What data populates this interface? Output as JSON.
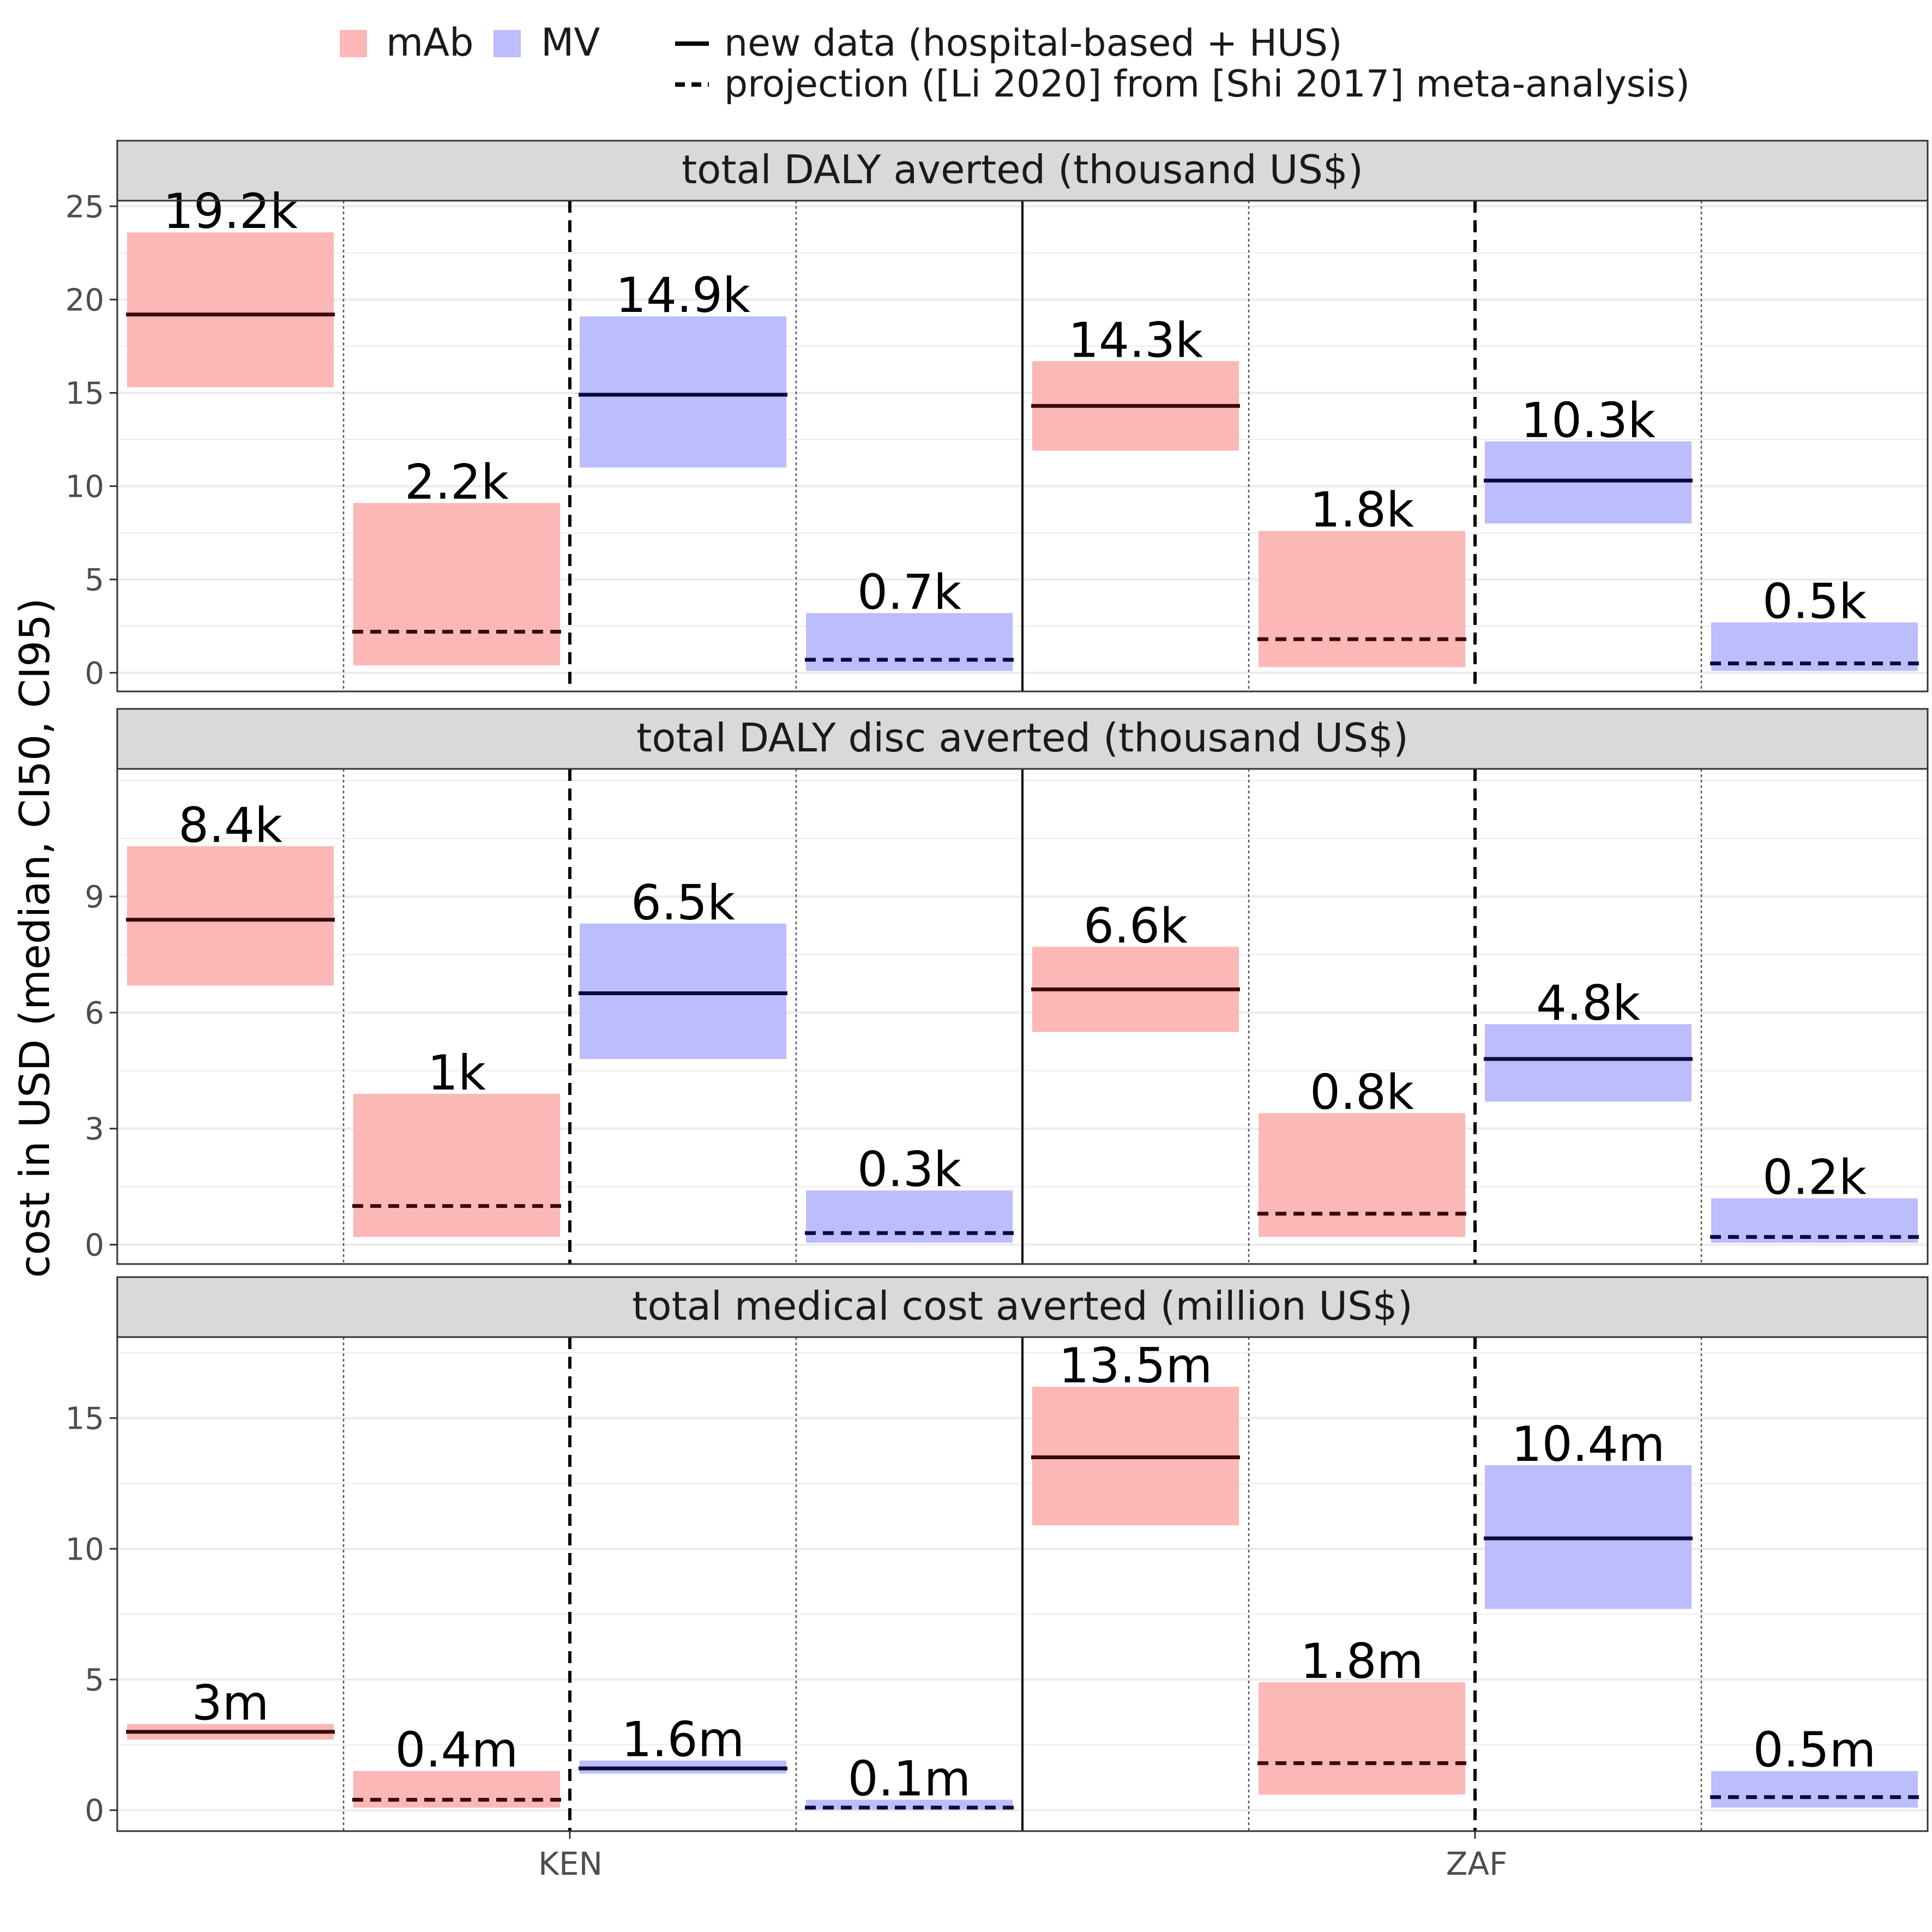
{
  "chart_data": {
    "type": "bar",
    "ylabel": "cost in USD (median, CI50, CI95)",
    "legend": {
      "placement": "top",
      "fill_items": [
        {
          "label": "mAb",
          "color": "#fcb7b7"
        },
        {
          "label": "MV",
          "color": "#bbbdfc"
        }
      ],
      "line_items": [
        {
          "label": "new data (hospital-based + HUS)",
          "style": "solid"
        },
        {
          "label": "projection ([Li 2020] from [Shi 2017] meta-analysis)",
          "style": "dashed"
        }
      ]
    },
    "groups": [
      "KEN",
      "ZAF"
    ],
    "colors": {
      "mAb": "#fcb7b7",
      "MV": "#bbbdfc",
      "mAb_line": "#3a0a0a",
      "MV_line": "#0a0a3a"
    },
    "panels": [
      {
        "title": "total DALY averted (thousand US$)",
        "ylim": [
          -1,
          25.3
        ],
        "yticks": [
          0,
          5,
          10,
          15,
          20,
          25
        ],
        "items": [
          {
            "country": "KEN",
            "product": "mAb",
            "style": "solid",
            "median": 19.2,
            "low": 15.3,
            "high": 23.6,
            "label": "19.2k"
          },
          {
            "country": "KEN",
            "product": "mAb",
            "style": "dashed",
            "median": 2.2,
            "low": 0.4,
            "high": 9.1,
            "label": "2.2k"
          },
          {
            "country": "KEN",
            "product": "MV",
            "style": "solid",
            "median": 14.9,
            "low": 11.0,
            "high": 19.1,
            "label": "14.9k"
          },
          {
            "country": "KEN",
            "product": "MV",
            "style": "dashed",
            "median": 0.7,
            "low": 0.1,
            "high": 3.2,
            "label": "0.7k"
          },
          {
            "country": "ZAF",
            "product": "mAb",
            "style": "solid",
            "median": 14.3,
            "low": 11.9,
            "high": 16.7,
            "label": "14.3k"
          },
          {
            "country": "ZAF",
            "product": "mAb",
            "style": "dashed",
            "median": 1.8,
            "low": 0.3,
            "high": 7.6,
            "label": "1.8k"
          },
          {
            "country": "ZAF",
            "product": "MV",
            "style": "solid",
            "median": 10.3,
            "low": 8.0,
            "high": 12.4,
            "label": "10.3k"
          },
          {
            "country": "ZAF",
            "product": "MV",
            "style": "dashed",
            "median": 0.5,
            "low": 0.1,
            "high": 2.7,
            "label": "0.5k"
          }
        ]
      },
      {
        "title": "total DALY disc averted (thousand US$)",
        "ylim": [
          -0.5,
          12.3
        ],
        "yticks": [
          0,
          3,
          6,
          9
        ],
        "items": [
          {
            "country": "KEN",
            "product": "mAb",
            "style": "solid",
            "median": 8.4,
            "low": 6.7,
            "high": 10.3,
            "label": "8.4k"
          },
          {
            "country": "KEN",
            "product": "mAb",
            "style": "dashed",
            "median": 1.0,
            "low": 0.2,
            "high": 3.9,
            "label": "1k"
          },
          {
            "country": "KEN",
            "product": "MV",
            "style": "solid",
            "median": 6.5,
            "low": 4.8,
            "high": 8.3,
            "label": "6.5k"
          },
          {
            "country": "KEN",
            "product": "MV",
            "style": "dashed",
            "median": 0.3,
            "low": 0.05,
            "high": 1.4,
            "label": "0.3k"
          },
          {
            "country": "ZAF",
            "product": "mAb",
            "style": "solid",
            "median": 6.6,
            "low": 5.5,
            "high": 7.7,
            "label": "6.6k"
          },
          {
            "country": "ZAF",
            "product": "mAb",
            "style": "dashed",
            "median": 0.8,
            "low": 0.2,
            "high": 3.4,
            "label": "0.8k"
          },
          {
            "country": "ZAF",
            "product": "MV",
            "style": "solid",
            "median": 4.8,
            "low": 3.7,
            "high": 5.7,
            "label": "4.8k"
          },
          {
            "country": "ZAF",
            "product": "MV",
            "style": "dashed",
            "median": 0.2,
            "low": 0.05,
            "high": 1.2,
            "label": "0.2k"
          }
        ]
      },
      {
        "title": "total medical cost averted (million US$)",
        "ylim": [
          -0.8,
          18.1
        ],
        "yticks": [
          0,
          5,
          10,
          15
        ],
        "items": [
          {
            "country": "KEN",
            "product": "mAb",
            "style": "solid",
            "median": 3.0,
            "low": 2.7,
            "high": 3.3,
            "label": "3m"
          },
          {
            "country": "KEN",
            "product": "mAb",
            "style": "dashed",
            "median": 0.4,
            "low": 0.1,
            "high": 1.5,
            "label": "0.4m"
          },
          {
            "country": "KEN",
            "product": "MV",
            "style": "solid",
            "median": 1.6,
            "low": 1.4,
            "high": 1.9,
            "label": "1.6m"
          },
          {
            "country": "KEN",
            "product": "MV",
            "style": "dashed",
            "median": 0.1,
            "low": 0.02,
            "high": 0.4,
            "label": "0.1m"
          },
          {
            "country": "ZAF",
            "product": "mAb",
            "style": "solid",
            "median": 13.5,
            "low": 10.9,
            "high": 16.2,
            "label": "13.5m"
          },
          {
            "country": "ZAF",
            "product": "mAb",
            "style": "dashed",
            "median": 1.8,
            "low": 0.6,
            "high": 4.9,
            "label": "1.8m"
          },
          {
            "country": "ZAF",
            "product": "MV",
            "style": "solid",
            "median": 10.4,
            "low": 7.7,
            "high": 13.2,
            "label": "10.4m"
          },
          {
            "country": "ZAF",
            "product": "MV",
            "style": "dashed",
            "median": 0.5,
            "low": 0.1,
            "high": 1.5,
            "label": "0.5m"
          }
        ]
      }
    ]
  }
}
